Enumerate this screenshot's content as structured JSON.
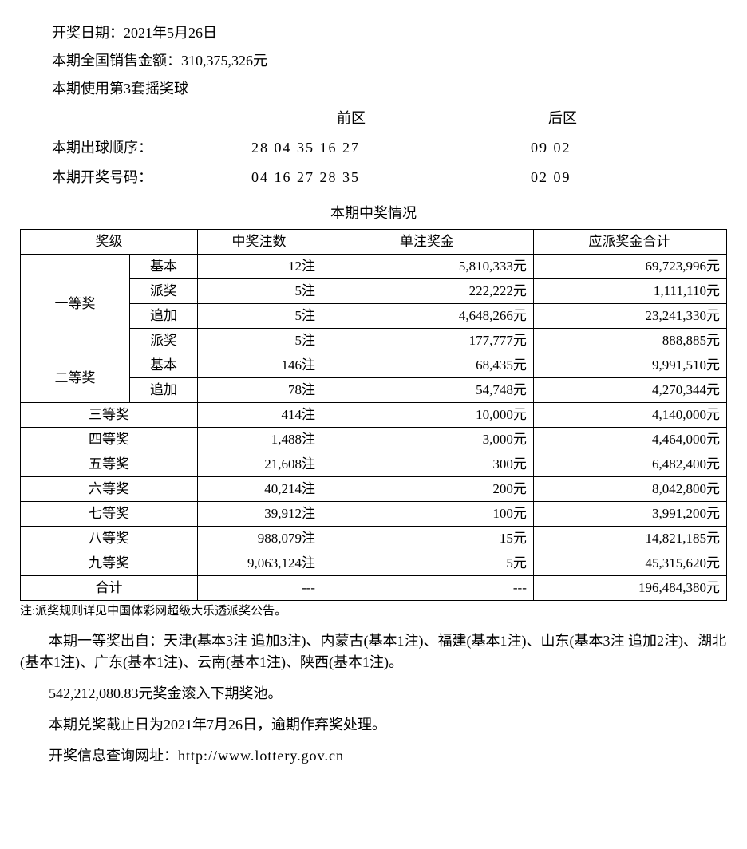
{
  "header": {
    "draw_date_label": "开奖日期：",
    "draw_date": "2021年5月26日",
    "sales_label": "本期全国销售金额：",
    "sales_amount": "310,375,326元",
    "ball_set": "本期使用第3套摇奖球"
  },
  "numbers": {
    "front_label": "前区",
    "back_label": "后区",
    "draw_order_label": "本期出球顺序：",
    "draw_order_front": "28 04 35 16 27",
    "draw_order_back": "09 02",
    "winning_label": "本期开奖号码：",
    "winning_front": "04 16 27 28 35",
    "winning_back": "02 09"
  },
  "table": {
    "title": "本期中奖情况",
    "headers": {
      "prize_level": "奖级",
      "count": "中奖注数",
      "unit_prize": "单注奖金",
      "total_prize": "应派奖金合计"
    },
    "rows": [
      {
        "level": "一等奖",
        "sub": "基本",
        "count": "12注",
        "unit": "5,810,333元",
        "total": "69,723,996元",
        "rowspan": 4
      },
      {
        "sub": "派奖",
        "count": "5注",
        "unit": "222,222元",
        "total": "1,111,110元"
      },
      {
        "sub": "追加",
        "count": "5注",
        "unit": "4,648,266元",
        "total": "23,241,330元"
      },
      {
        "sub": "派奖",
        "count": "5注",
        "unit": "177,777元",
        "total": "888,885元"
      },
      {
        "level": "二等奖",
        "sub": "基本",
        "count": "146注",
        "unit": "68,435元",
        "total": "9,991,510元",
        "rowspan": 2
      },
      {
        "sub": "追加",
        "count": "78注",
        "unit": "54,748元",
        "total": "4,270,344元"
      },
      {
        "level": "三等奖",
        "count": "414注",
        "unit": "10,000元",
        "total": "4,140,000元",
        "colspan": 2
      },
      {
        "level": "四等奖",
        "count": "1,488注",
        "unit": "3,000元",
        "total": "4,464,000元",
        "colspan": 2
      },
      {
        "level": "五等奖",
        "count": "21,608注",
        "unit": "300元",
        "total": "6,482,400元",
        "colspan": 2
      },
      {
        "level": "六等奖",
        "count": "40,214注",
        "unit": "200元",
        "total": "8,042,800元",
        "colspan": 2
      },
      {
        "level": "七等奖",
        "count": "39,912注",
        "unit": "100元",
        "total": "3,991,200元",
        "colspan": 2
      },
      {
        "level": "八等奖",
        "count": "988,079注",
        "unit": "15元",
        "total": "14,821,185元",
        "colspan": 2
      },
      {
        "level": "九等奖",
        "count": "9,063,124注",
        "unit": "5元",
        "total": "45,315,620元",
        "colspan": 2
      },
      {
        "level": "合计",
        "count": "---",
        "unit": "---",
        "total": "196,484,380元",
        "colspan": 2
      }
    ]
  },
  "footer": {
    "note": "注:派奖规则详见中国体彩网超级大乐透派奖公告。",
    "winners": "本期一等奖出自：天津(基本3注 追加3注)、内蒙古(基本1注)、福建(基本1注)、山东(基本3注 追加2注)、湖北(基本1注)、广东(基本1注)、云南(基本1注)、陕西(基本1注)。",
    "rollover": "542,212,080.83元奖金滚入下期奖池。",
    "deadline": "本期兑奖截止日为2021年7月26日，逾期作弃奖处理。",
    "website_label": "开奖信息查询网址：",
    "website": "http://www.lottery.gov.cn"
  }
}
